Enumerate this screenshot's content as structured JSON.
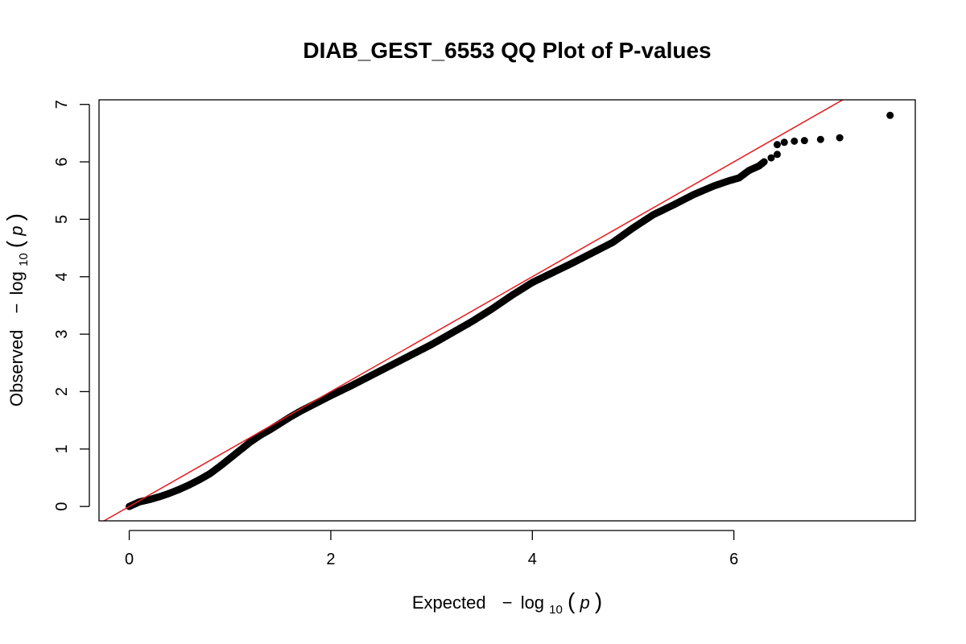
{
  "chart_data": {
    "type": "scatter",
    "title": "DIAB_GEST_6553 QQ Plot of P-values",
    "xlabel": {
      "prefix": "Expected",
      "minus": "−",
      "log": "log",
      "base": "10",
      "open": "(",
      "var": "p",
      "close": ")"
    },
    "ylabel": {
      "prefix": "Observed",
      "minus": "−",
      "log": "log",
      "base": "10",
      "open": "(",
      "var": "p",
      "close": ")"
    },
    "xlim": [
      -0.3,
      7.8
    ],
    "ylim": [
      -0.25,
      7.08
    ],
    "x_ticks": [
      "0",
      "2",
      "4",
      "6"
    ],
    "y_ticks": [
      "0",
      "1",
      "2",
      "3",
      "4",
      "5",
      "6",
      "7"
    ],
    "reference_line": {
      "slope": 1,
      "intercept": 0,
      "color": "#e8191c"
    },
    "point_color": "#000000",
    "curve": [
      [
        0.0,
        0.0
      ],
      [
        0.1,
        0.08
      ],
      [
        0.2,
        0.12
      ],
      [
        0.3,
        0.17
      ],
      [
        0.4,
        0.23
      ],
      [
        0.5,
        0.3
      ],
      [
        0.6,
        0.38
      ],
      [
        0.7,
        0.47
      ],
      [
        0.8,
        0.57
      ],
      [
        0.9,
        0.7
      ],
      [
        1.0,
        0.84
      ],
      [
        1.1,
        0.98
      ],
      [
        1.2,
        1.12
      ],
      [
        1.3,
        1.24
      ],
      [
        1.4,
        1.34
      ],
      [
        1.5,
        1.45
      ],
      [
        1.6,
        1.56
      ],
      [
        1.7,
        1.66
      ],
      [
        1.8,
        1.75
      ],
      [
        1.9,
        1.84
      ],
      [
        2.0,
        1.93
      ],
      [
        2.2,
        2.1
      ],
      [
        2.4,
        2.28
      ],
      [
        2.6,
        2.46
      ],
      [
        2.8,
        2.64
      ],
      [
        3.0,
        2.82
      ],
      [
        3.2,
        3.02
      ],
      [
        3.4,
        3.22
      ],
      [
        3.6,
        3.44
      ],
      [
        3.8,
        3.68
      ],
      [
        4.0,
        3.9
      ],
      [
        4.2,
        4.07
      ],
      [
        4.4,
        4.24
      ],
      [
        4.6,
        4.42
      ],
      [
        4.8,
        4.6
      ],
      [
        5.0,
        4.85
      ],
      [
        5.2,
        5.08
      ],
      [
        5.4,
        5.25
      ],
      [
        5.6,
        5.43
      ],
      [
        5.8,
        5.58
      ],
      [
        5.95,
        5.67
      ],
      [
        6.05,
        5.72
      ],
      [
        6.15,
        5.85
      ],
      [
        6.25,
        5.93
      ],
      [
        6.3,
        6.0
      ]
    ],
    "tail_points": [
      [
        6.37,
        6.07
      ],
      [
        6.43,
        6.13
      ],
      [
        6.43,
        6.3
      ],
      [
        6.5,
        6.34
      ],
      [
        6.6,
        6.36
      ],
      [
        6.7,
        6.37
      ],
      [
        6.86,
        6.39
      ],
      [
        7.05,
        6.42
      ],
      [
        7.55,
        6.81
      ]
    ]
  }
}
